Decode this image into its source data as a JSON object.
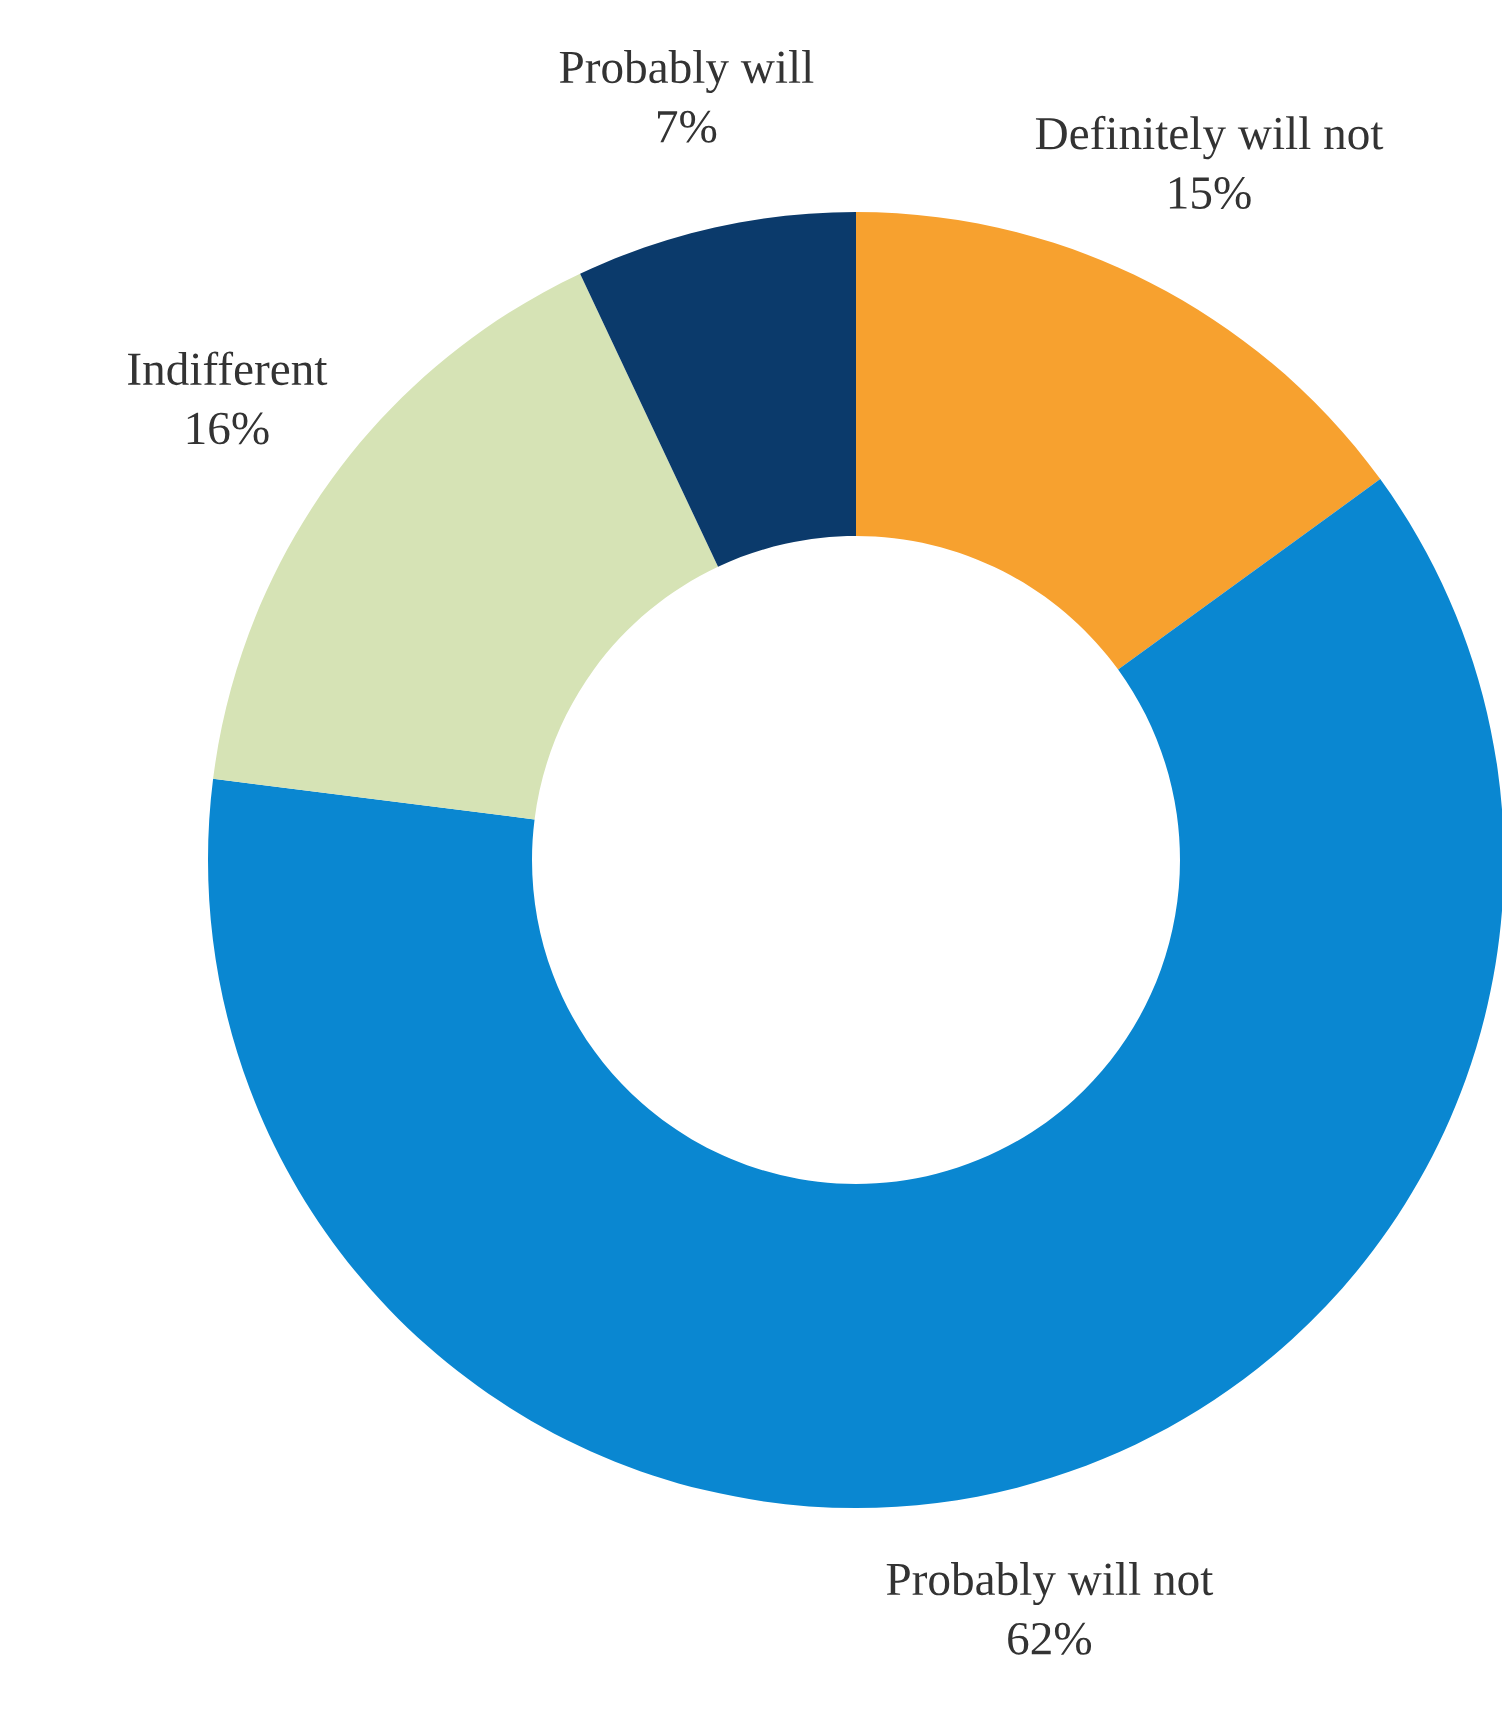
{
  "chart_data": {
    "type": "donut",
    "categories": [
      "Definitely will not",
      "Probably will not",
      "Indifferent",
      "Probably will"
    ],
    "values": [
      15,
      62,
      16,
      7
    ],
    "value_labels": [
      "15%",
      "62%",
      "16%",
      "7%"
    ],
    "colors": [
      "#f7a12f",
      "#0a87d1",
      "#d6e3b5",
      "#0b3a6b"
    ],
    "legend": false
  }
}
